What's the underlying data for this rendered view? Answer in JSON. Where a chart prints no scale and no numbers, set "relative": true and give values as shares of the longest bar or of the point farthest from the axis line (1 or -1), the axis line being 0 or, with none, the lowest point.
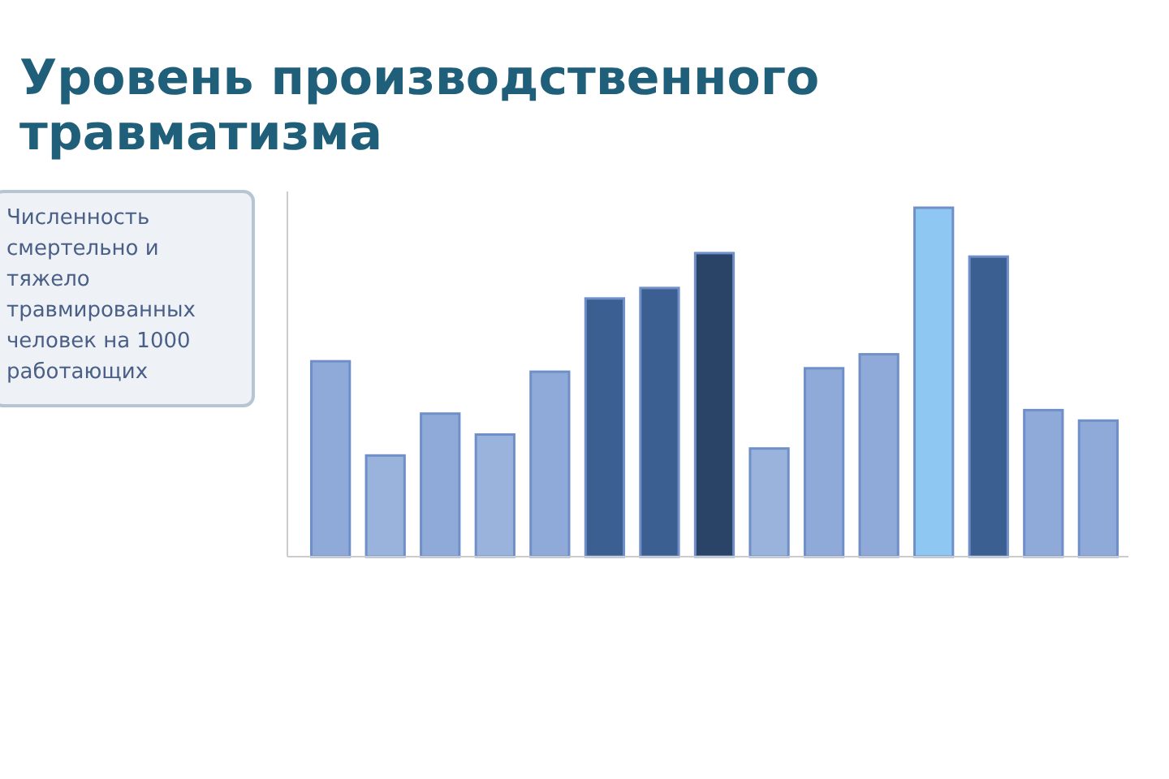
{
  "chart_data": {
    "type": "bar",
    "title": "Уровень производственного травматизма",
    "annotations": [
      "Численность смертельно и тяжело травмированных человек на 1000 работающих"
    ],
    "relative": true,
    "categories": [
      null,
      null,
      null,
      null,
      null,
      null,
      null,
      null,
      null,
      null,
      null,
      null,
      null,
      null,
      null
    ],
    "values": [
      0.56,
      0.29,
      0.41,
      0.35,
      0.53,
      0.74,
      0.77,
      0.87,
      0.31,
      0.54,
      0.58,
      1,
      0.86,
      0.42,
      0.39
    ],
    "colors": [
      "#8faad8",
      "#9ab3dd",
      "#8faad8",
      "#9ab3dd",
      "#8faad8",
      "#3c5f92",
      "#3c5f92",
      "#2a4468",
      "#9ab3dd",
      "#8faad8",
      "#8faad8",
      "#8ec8f2",
      "#3c5f92",
      "#8faad8",
      "#8faad8"
    ]
  }
}
